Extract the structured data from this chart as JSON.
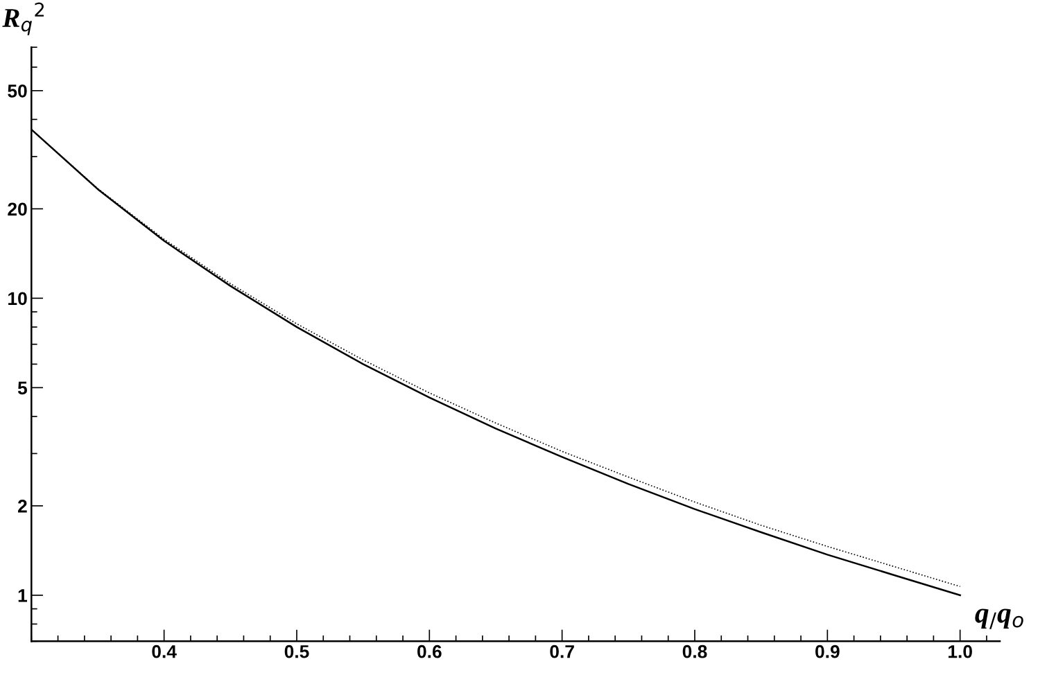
{
  "chart_data": {
    "type": "line",
    "xlabel": "q$_{/}$q$_{o}$",
    "ylabel": "R$_{q}$$^{2}$",
    "log": "y",
    "xlim": [
      0.3,
      1.03
    ],
    "ylim": [
      0.7,
      70
    ],
    "xticks": [
      {
        "value": 0.4,
        "label": "0.4"
      },
      {
        "value": 0.5,
        "label": "0.5"
      },
      {
        "value": 0.6,
        "label": "0.6"
      },
      {
        "value": 0.7,
        "label": "0.7"
      },
      {
        "value": 0.8,
        "label": "0.8"
      },
      {
        "value": 0.9,
        "label": "0.9"
      },
      {
        "value": 1.0,
        "label": "1.0"
      }
    ],
    "yticks": [
      1,
      2,
      5,
      10,
      20,
      50
    ],
    "x": [
      0.3,
      0.35,
      0.4,
      0.45,
      0.5,
      0.55,
      0.6,
      0.65,
      0.7,
      0.75,
      0.8,
      0.85,
      0.9,
      0.95,
      1.0
    ],
    "series": [
      {
        "color": "#000000",
        "line_style": "solid",
        "values": [
          37.0,
          23.3,
          15.6,
          11.0,
          8.0,
          6.0,
          4.63,
          3.64,
          2.92,
          2.37,
          1.95,
          1.63,
          1.37,
          1.17,
          1.0
        ]
      },
      {
        "color": "#000000",
        "line_style": "dotted",
        "values": [
          37.0,
          23.4,
          15.8,
          11.2,
          8.2,
          6.2,
          4.8,
          3.8,
          3.05,
          2.5,
          2.06,
          1.72,
          1.46,
          1.25,
          1.07
        ]
      }
    ]
  }
}
